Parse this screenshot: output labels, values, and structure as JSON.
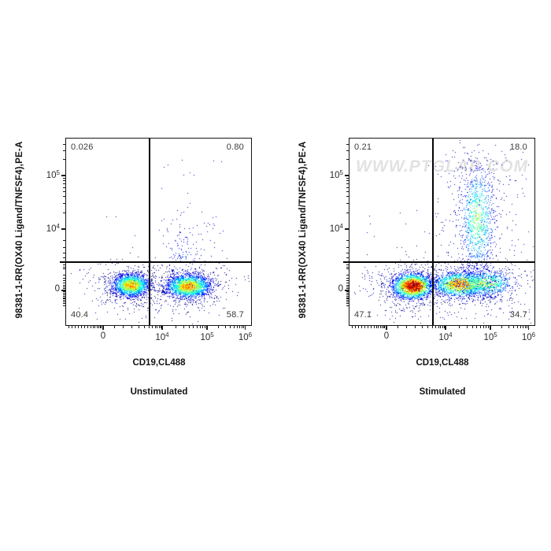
{
  "page": {
    "background": "#ffffff"
  },
  "colors": {
    "frame": "#161616",
    "quadrant_line": "#050505",
    "quadrant_label_text": "#3b3b3b",
    "axis_text": "#2a2a2a",
    "watermark_text": "#e2e2e2",
    "density_colormap": "jet (navy #00007f -> blue #0000ff -> cyan #00ffff -> green #00ff00 -> yellow #ffff00 -> red #ff0000)"
  },
  "chart_data": [
    {
      "type": "scatter",
      "subtype": "flow-cytometry-density-dot-plot",
      "title": "Unstimulated",
      "xlabel": "CD19,CL488",
      "ylabel": "98381-1-RR(OX40 Ligand/TNFSF4),PE-A",
      "watermark": "",
      "x_axis": {
        "scale": "biexponential",
        "major": [
          {
            "label": "0",
            "pos": 0.2
          },
          {
            "label": "10^4",
            "pos": 0.519
          },
          {
            "label": "10^5",
            "pos": 0.762
          },
          {
            "label": "10^6",
            "pos": 0.968
          }
        ],
        "minor": [
          0.013,
          0.03,
          0.048,
          0.066,
          0.084,
          0.102,
          0.118,
          0.133,
          0.146,
          0.157,
          0.167,
          0.176,
          0.184,
          0.191,
          0.26,
          0.31,
          0.355,
          0.392,
          0.422,
          0.447,
          0.466,
          0.481,
          0.493,
          0.503,
          0.512,
          0.592,
          0.635,
          0.665,
          0.689,
          0.708,
          0.724,
          0.738,
          0.751,
          0.825,
          0.861,
          0.887,
          0.907,
          0.924,
          0.938,
          0.95,
          0.96
        ]
      },
      "y_axis": {
        "scale": "biexponential",
        "major": [
          {
            "label": "10^5",
            "pos": 0.198
          },
          {
            "label": "10^4",
            "pos": 0.485
          },
          {
            "label": "0",
            "pos": 0.814
          }
        ],
        "minor": [
          0.031,
          0.067,
          0.112,
          0.212,
          0.226,
          0.243,
          0.262,
          0.284,
          0.312,
          0.348,
          0.399,
          0.545,
          0.585,
          0.615,
          0.64,
          0.66,
          0.677,
          0.69,
          0.7,
          0.73,
          0.748,
          0.762,
          0.775,
          0.786,
          0.796,
          0.804,
          0.822,
          0.83,
          0.838,
          0.846,
          0.853,
          0.86,
          0.867,
          0.875,
          0.885,
          0.897
        ]
      },
      "quadrants": {
        "x": 0.449,
        "y": 0.662,
        "labels": {
          "top_left": "0.026",
          "top_right": "0.80",
          "bottom_left": "40.4",
          "bottom_right": "58.7"
        }
      },
      "clusters": [
        {
          "kind": "gaussian",
          "cx": 0.35,
          "cy": 0.785,
          "sx": 0.048,
          "sy": 0.03,
          "count": 2300,
          "peak": 0.7,
          "seed": 11
        },
        {
          "kind": "gaussian",
          "cx": 0.66,
          "cy": 0.79,
          "sx": 0.058,
          "sy": 0.031,
          "count": 2500,
          "peak": 0.72,
          "seed": 22
        },
        {
          "kind": "gaussian",
          "cx": 0.63,
          "cy": 0.64,
          "sx": 0.05,
          "sy": 0.095,
          "count": 130,
          "peak": 0.18,
          "seed": 33
        },
        {
          "kind": "uniform",
          "x0": 0.5,
          "x1": 0.85,
          "y0": 0.38,
          "y1": 0.64,
          "count": 40,
          "peak": 0.1,
          "seed": 44
        },
        {
          "kind": "uniform",
          "x0": 0.48,
          "x1": 0.9,
          "y0": 0.1,
          "y1": 0.38,
          "count": 10,
          "peak": 0.08,
          "seed": 55
        },
        {
          "kind": "uniform",
          "x0": 0.06,
          "x1": 0.3,
          "y0": 0.7,
          "y1": 0.88,
          "count": 25,
          "peak": 0.1,
          "seed": 66
        },
        {
          "kind": "uniform",
          "x0": 0.15,
          "x1": 0.85,
          "y0": 0.86,
          "y1": 0.95,
          "count": 30,
          "peak": 0.1,
          "seed": 77
        },
        {
          "kind": "uniform",
          "x0": 0.1,
          "x1": 0.42,
          "y0": 0.3,
          "y1": 0.62,
          "count": 3,
          "peak": 0.08,
          "seed": 88
        }
      ]
    },
    {
      "type": "scatter",
      "subtype": "flow-cytometry-density-dot-plot",
      "title": "Stimulated",
      "xlabel": "CD19,CL488",
      "ylabel": "98381-1-RR(OX40 Ligand/TNFSF4),PE-A",
      "watermark": "WWW.PTGLAB.COM",
      "x_axis": {
        "scale": "biexponential",
        "major": [
          {
            "label": "0",
            "pos": 0.2
          },
          {
            "label": "10^4",
            "pos": 0.519
          },
          {
            "label": "10^5",
            "pos": 0.762
          },
          {
            "label": "10^6",
            "pos": 0.968
          }
        ],
        "minor": [
          0.013,
          0.03,
          0.048,
          0.066,
          0.084,
          0.102,
          0.118,
          0.133,
          0.146,
          0.157,
          0.167,
          0.176,
          0.184,
          0.191,
          0.26,
          0.31,
          0.355,
          0.392,
          0.422,
          0.447,
          0.466,
          0.481,
          0.493,
          0.503,
          0.512,
          0.592,
          0.635,
          0.665,
          0.689,
          0.708,
          0.724,
          0.738,
          0.751,
          0.825,
          0.861,
          0.887,
          0.907,
          0.924,
          0.938,
          0.95,
          0.96
        ]
      },
      "y_axis": {
        "scale": "biexponential",
        "major": [
          {
            "label": "10^5",
            "pos": 0.198
          },
          {
            "label": "10^4",
            "pos": 0.485
          },
          {
            "label": "0",
            "pos": 0.814
          }
        ],
        "minor": [
          0.031,
          0.067,
          0.112,
          0.212,
          0.226,
          0.243,
          0.262,
          0.284,
          0.312,
          0.348,
          0.399,
          0.545,
          0.585,
          0.615,
          0.64,
          0.66,
          0.677,
          0.69,
          0.7,
          0.73,
          0.748,
          0.762,
          0.775,
          0.786,
          0.796,
          0.804,
          0.822,
          0.83,
          0.838,
          0.846,
          0.853,
          0.86,
          0.867,
          0.875,
          0.885,
          0.897
        ]
      },
      "quadrants": {
        "x": 0.449,
        "y": 0.662,
        "labels": {
          "top_left": "0.21",
          "top_right": "18.0",
          "bottom_left": "47.1",
          "bottom_right": "34.7"
        }
      },
      "clusters": [
        {
          "kind": "gaussian",
          "cx": 0.34,
          "cy": 0.79,
          "sx": 0.052,
          "sy": 0.033,
          "count": 2700,
          "peak": 1.0,
          "seed": 101
        },
        {
          "kind": "gaussian",
          "cx": 0.6,
          "cy": 0.78,
          "sx": 0.075,
          "sy": 0.034,
          "count": 2100,
          "peak": 0.76,
          "seed": 102
        },
        {
          "kind": "gaussian",
          "cx": 0.73,
          "cy": 0.775,
          "sx": 0.08,
          "sy": 0.038,
          "count": 900,
          "peak": 0.55,
          "seed": 103
        },
        {
          "kind": "gaussian",
          "cx": 0.69,
          "cy": 0.43,
          "sx": 0.047,
          "sy": 0.15,
          "count": 1100,
          "peak": 0.5,
          "seed": 104
        },
        {
          "kind": "uniform",
          "x0": 0.46,
          "x1": 0.97,
          "y0": 0.06,
          "y1": 0.62,
          "count": 140,
          "peak": 0.1,
          "seed": 105
        },
        {
          "kind": "uniform",
          "x0": 0.05,
          "x1": 0.44,
          "y0": 0.3,
          "y1": 0.64,
          "count": 10,
          "peak": 0.08,
          "seed": 106
        },
        {
          "kind": "uniform",
          "x0": 0.1,
          "x1": 0.9,
          "y0": 0.86,
          "y1": 0.96,
          "count": 40,
          "peak": 0.1,
          "seed": 107
        },
        {
          "kind": "uniform",
          "x0": 0.04,
          "x1": 0.2,
          "y0": 0.68,
          "y1": 0.86,
          "count": 25,
          "peak": 0.1,
          "seed": 108
        }
      ]
    }
  ]
}
